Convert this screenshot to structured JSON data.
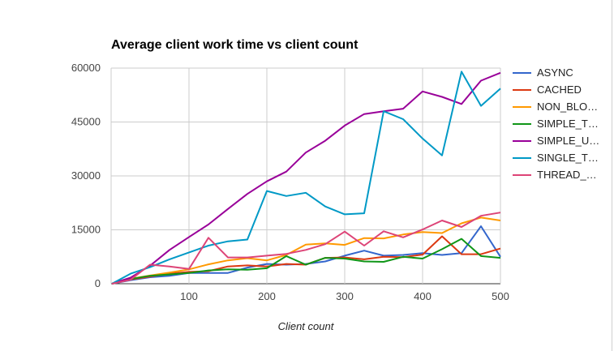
{
  "chart_data": {
    "type": "line",
    "title": "Average client work time vs client count",
    "xlabel": "Client count",
    "ylabel": "",
    "xlim": [
      0,
      500
    ],
    "ylim": [
      0,
      60000
    ],
    "x_ticks": [
      "100",
      "200",
      "300",
      "400",
      "500"
    ],
    "y_ticks": [
      "0",
      "15000",
      "30000",
      "45000",
      "60000"
    ],
    "grid": true,
    "legend_position": "right",
    "x": [
      1,
      25,
      50,
      75,
      100,
      125,
      150,
      175,
      200,
      225,
      250,
      275,
      300,
      325,
      350,
      375,
      400,
      425,
      450,
      475,
      500
    ],
    "series": [
      {
        "name": "ASYNC",
        "legend_label": "ASYNC",
        "color": "#3366cc",
        "values": [
          0,
          1000,
          1800,
          2200,
          3000,
          3000,
          3000,
          4500,
          5500,
          5300,
          5500,
          6200,
          7800,
          9200,
          7800,
          8000,
          8500,
          8000,
          8500,
          16000,
          7500
        ]
      },
      {
        "name": "CACHED",
        "legend_label": "CACHED",
        "color": "#dc3912",
        "values": [
          0,
          1200,
          2000,
          2800,
          3300,
          3500,
          4800,
          5100,
          4800,
          5500,
          5300,
          7200,
          7300,
          6800,
          7500,
          7400,
          8100,
          13200,
          8200,
          8200,
          9800
        ]
      },
      {
        "name": "NON_BLOCKING",
        "legend_label": "NON_BLO…",
        "color": "#ff9900",
        "values": [
          0,
          1400,
          2300,
          3100,
          4000,
          5400,
          6500,
          7100,
          6500,
          8000,
          10900,
          11200,
          10800,
          12700,
          12600,
          13700,
          14400,
          14100,
          16800,
          18400,
          17600
        ]
      },
      {
        "name": "SIMPLE_THREADED",
        "legend_label": "SIMPLE_T…",
        "color": "#109618",
        "values": [
          0,
          1300,
          2200,
          2600,
          3000,
          3700,
          4000,
          3900,
          4300,
          7700,
          5300,
          7200,
          7000,
          6200,
          6100,
          7500,
          7000,
          9600,
          12500,
          7700,
          7200
        ]
      },
      {
        "name": "SIMPLE_UNTHREADED",
        "legend_label": "SIMPLE_U…",
        "color": "#990099",
        "values": [
          0,
          1700,
          5000,
          9400,
          13000,
          16500,
          20800,
          25000,
          28500,
          31200,
          36500,
          39800,
          44000,
          47200,
          48000,
          48700,
          53500,
          52000,
          50000,
          56500,
          58700
        ]
      },
      {
        "name": "SINGLE_THREADED",
        "legend_label": "SINGLE_T…",
        "color": "#0099c6",
        "values": [
          0,
          2800,
          4600,
          6800,
          8700,
          10600,
          11800,
          12300,
          25800,
          24400,
          25300,
          21500,
          19300,
          19600,
          48000,
          45800,
          40400,
          35700,
          59000,
          49500,
          54300
        ]
      },
      {
        "name": "THREAD_POOL",
        "legend_label": "THREAD_…",
        "color": "#dd4477",
        "values": [
          0,
          1100,
          5300,
          4800,
          4100,
          12800,
          7300,
          7300,
          7800,
          8300,
          9400,
          11000,
          14500,
          10600,
          14600,
          12900,
          15100,
          17600,
          15800,
          18900,
          19800
        ]
      }
    ]
  }
}
